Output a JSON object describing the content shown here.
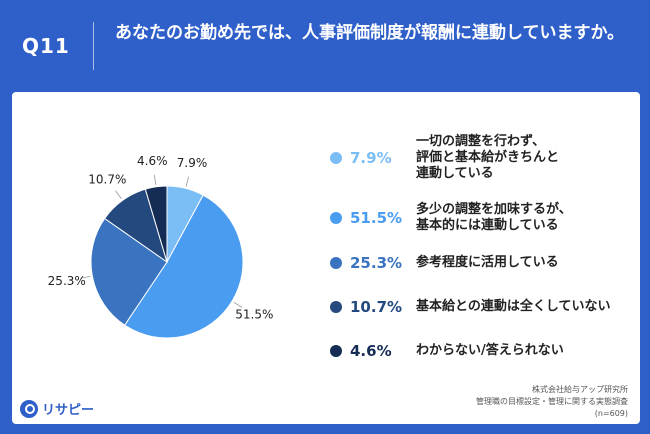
{
  "header": {
    "q_label": "Q11",
    "question": "あなたのお勤め先では、人事評価制度が報酬に連動していますか。"
  },
  "chart_data": {
    "type": "pie",
    "title": "",
    "slices": [
      {
        "label": "一切の調整を行わず、\n評価と基本給がきちんと\n連動している",
        "value": 7.9,
        "display": "7.9%",
        "color": "#7bbdf5"
      },
      {
        "label": "多少の調整を加味するが、\n基本的には連動している",
        "value": 51.5,
        "display": "51.5%",
        "color": "#4a9cf0"
      },
      {
        "label": "参考程度に活用している",
        "value": 25.3,
        "display": "25.3%",
        "color": "#3a73bf"
      },
      {
        "label": "基本給との連動は全くしていない",
        "value": 10.7,
        "display": "10.7%",
        "color": "#23497e"
      },
      {
        "label": "わからない/答えられない",
        "value": 4.6,
        "display": "4.6%",
        "color": "#152c55"
      }
    ],
    "legend_position": "right"
  },
  "source": "株式会社給与アップ研究所\n管理職の目標設定・管理に関する実態調査\n(n=609)",
  "logo": {
    "text": "リサピー",
    "icon": "magnifier-icon"
  }
}
